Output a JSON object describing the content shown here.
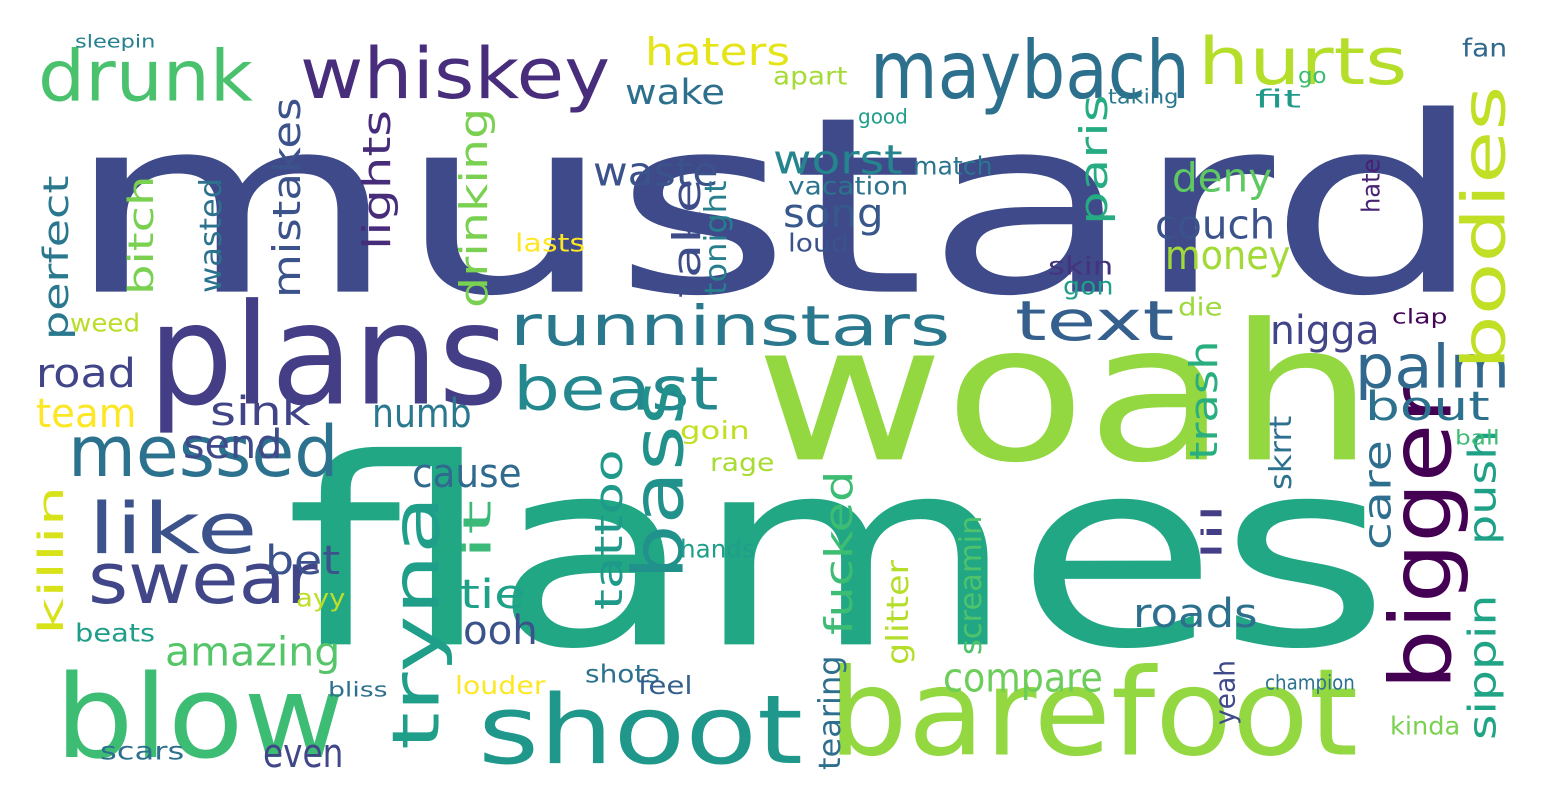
{
  "words": [
    {
      "text": "mustard",
      "color": "#3e4a89"
    },
    {
      "text": "woah",
      "color": "#93d741"
    },
    {
      "text": "flames",
      "color": "#22a785"
    },
    {
      "text": "plans",
      "color": "#433e85"
    },
    {
      "text": "barefoot",
      "color": "#93d741"
    },
    {
      "text": "shoot",
      "color": "#1f988b"
    },
    {
      "text": "blow",
      "color": "#3dbc74"
    },
    {
      "text": "maybach",
      "color": "#2d708e"
    },
    {
      "text": "whiskey",
      "color": "#472d7b"
    },
    {
      "text": "drunk",
      "color": "#4ac16d"
    },
    {
      "text": "hurts",
      "color": "#b5de2b"
    },
    {
      "text": "messed",
      "color": "#2c728e"
    },
    {
      "text": "swear",
      "color": "#404688"
    },
    {
      "text": "like",
      "color": "#3b528b"
    },
    {
      "text": "runninstars",
      "color": "#2a788e"
    },
    {
      "text": "text",
      "color": "#355f8d"
    },
    {
      "text": "beast",
      "color": "#23898e"
    },
    {
      "text": "bigger",
      "color": "#440154"
    },
    {
      "text": "palm",
      "color": "#31688e"
    },
    {
      "text": "bodies",
      "color": "#c0df25"
    },
    {
      "text": "bass",
      "color": "#21918c"
    },
    {
      "text": "tryna",
      "color": "#1f9e89"
    },
    {
      "text": "haters",
      "color": "#e5e419"
    },
    {
      "text": "wake",
      "color": "#2d708e"
    },
    {
      "text": "waste",
      "color": "#3b528b"
    },
    {
      "text": "worst",
      "color": "#25858e"
    },
    {
      "text": "song",
      "color": "#38588c"
    },
    {
      "text": "deny",
      "color": "#5ec962"
    },
    {
      "text": "couch",
      "color": "#3b528b"
    },
    {
      "text": "money",
      "color": "#a2da37"
    },
    {
      "text": "nigga",
      "color": "#414487"
    },
    {
      "text": "road",
      "color": "#414487"
    },
    {
      "text": "team",
      "color": "#fde725"
    },
    {
      "text": "sink",
      "color": "#414487"
    },
    {
      "text": "numb",
      "color": "#2a788e"
    },
    {
      "text": "bout",
      "color": "#2c728e"
    },
    {
      "text": "send",
      "color": "#3e4a89"
    },
    {
      "text": "cause",
      "color": "#306a8e"
    },
    {
      "text": "bet",
      "color": "#3b528b"
    },
    {
      "text": "amazing",
      "color": "#54c568"
    },
    {
      "text": "tie",
      "color": "#1fa088"
    },
    {
      "text": "ooh",
      "color": "#3b528b"
    },
    {
      "text": "roads",
      "color": "#2d708e"
    },
    {
      "text": "compare",
      "color": "#6ccd5a"
    },
    {
      "text": "even",
      "color": "#404688"
    },
    {
      "text": "mistakes",
      "color": "#3b528b"
    },
    {
      "text": "lights",
      "color": "#472c7a"
    },
    {
      "text": "drinking",
      "color": "#7ad151"
    },
    {
      "text": "perfect",
      "color": "#2a788e"
    },
    {
      "text": "bitch",
      "color": "#7ad151"
    },
    {
      "text": "killin",
      "color": "#d8e219"
    },
    {
      "text": "fake",
      "color": "#3e4c8a"
    },
    {
      "text": "tattoo",
      "color": "#1f9a8a"
    },
    {
      "text": "it",
      "color": "#3aba76"
    },
    {
      "text": "fucked",
      "color": "#3dbc74"
    },
    {
      "text": "paris",
      "color": "#25ac82"
    },
    {
      "text": "trash",
      "color": "#29af7f"
    },
    {
      "text": "care",
      "color": "#2e6e8e"
    },
    {
      "text": "push",
      "color": "#1fa187"
    },
    {
      "text": "sippin",
      "color": "#20a486"
    },
    {
      "text": "apart",
      "color": "#a5db36"
    },
    {
      "text": "tonight",
      "color": "#277f8e"
    },
    {
      "text": "vacation",
      "color": "#2c738e"
    },
    {
      "text": "match",
      "color": "#2a768e"
    },
    {
      "text": "loud",
      "color": "#3b528b"
    },
    {
      "text": "lasts",
      "color": "#fde725"
    },
    {
      "text": "wasted",
      "color": "#2c728e"
    },
    {
      "text": "weed",
      "color": "#bade28"
    },
    {
      "text": "skin",
      "color": "#46337e"
    },
    {
      "text": "gon",
      "color": "#1f9e89"
    },
    {
      "text": "die",
      "color": "#9dd93b"
    },
    {
      "text": "fit",
      "color": "#1f998a"
    },
    {
      "text": "fan",
      "color": "#31688e"
    },
    {
      "text": "go",
      "color": "#3fbc73"
    },
    {
      "text": "taking",
      "color": "#2a788e"
    },
    {
      "text": "good",
      "color": "#1f9e89"
    },
    {
      "text": "hate",
      "color": "#482173"
    },
    {
      "text": "clap",
      "color": "#450559"
    },
    {
      "text": "goin",
      "color": "#c2df23"
    },
    {
      "text": "rage",
      "color": "#a8db34"
    },
    {
      "text": "hands",
      "color": "#1f9e89"
    },
    {
      "text": "skrrt",
      "color": "#2c728e"
    },
    {
      "text": "lil",
      "color": "#433e85"
    },
    {
      "text": "ball",
      "color": "#3dbc74"
    },
    {
      "text": "shots",
      "color": "#2c728e"
    },
    {
      "text": "glitter",
      "color": "#b5de2b"
    },
    {
      "text": "screamin",
      "color": "#4ec36b"
    },
    {
      "text": "tearing",
      "color": "#2e6f8e"
    },
    {
      "text": "feel",
      "color": "#355f8d"
    },
    {
      "text": "louder",
      "color": "#fde725"
    },
    {
      "text": "yeah",
      "color": "#3e4a89"
    },
    {
      "text": "champion",
      "color": "#2c728e"
    },
    {
      "text": "kinda",
      "color": "#7ad151"
    },
    {
      "text": "bliss",
      "color": "#2d708e"
    },
    {
      "text": "beats",
      "color": "#1f9e89"
    },
    {
      "text": "scars",
      "color": "#2d708e"
    },
    {
      "text": "ayy",
      "color": "#bddf26"
    },
    {
      "text": "sleepin",
      "color": "#26818e"
    }
  ]
}
